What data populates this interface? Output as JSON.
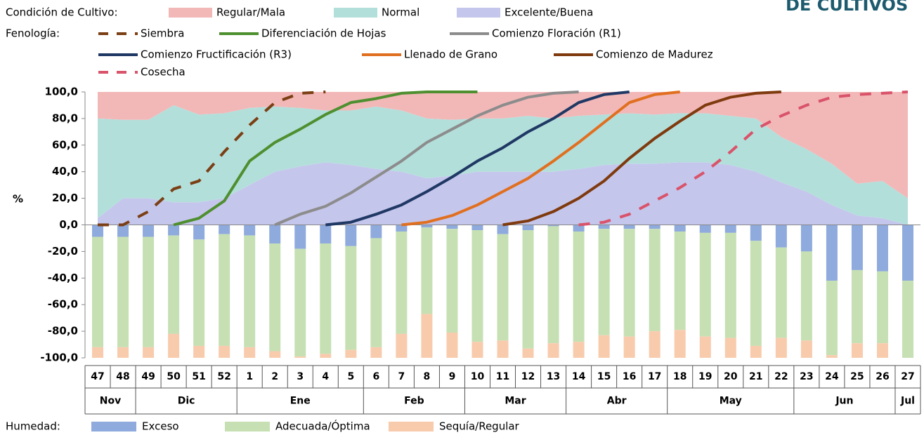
{
  "logo": "DE CULTIVOS",
  "chart_data": {
    "type": "combo",
    "condition_legend_title": "Condición de Cultivo:",
    "phenology_legend_title": "Fenología:",
    "moisture_legend_title": "Humedad:",
    "ylabel": "%",
    "categories": [
      "47",
      "48",
      "49",
      "50",
      "51",
      "52",
      "1",
      "2",
      "3",
      "4",
      "5",
      "6",
      "7",
      "8",
      "9",
      "10",
      "11",
      "12",
      "13",
      "14",
      "15",
      "16",
      "17",
      "18",
      "19",
      "20",
      "21",
      "22",
      "23",
      "24",
      "25",
      "26",
      "27"
    ],
    "months": [
      {
        "name": "Nov",
        "weeks": 2
      },
      {
        "name": "Dic",
        "weeks": 4
      },
      {
        "name": "Ene",
        "weeks": 5
      },
      {
        "name": "Feb",
        "weeks": 4
      },
      {
        "name": "Mar",
        "weeks": 4
      },
      {
        "name": "Abr",
        "weeks": 4
      },
      {
        "name": "May",
        "weeks": 5
      },
      {
        "name": "Jun",
        "weeks": 4
      },
      {
        "name": "Jul",
        "weeks": 1
      }
    ],
    "ylim": [
      -100,
      100
    ],
    "yticks": [
      {
        "value": 100,
        "label": "100,0"
      },
      {
        "value": 80,
        "label": "80,0"
      },
      {
        "value": 60,
        "label": "60,0"
      },
      {
        "value": 40,
        "label": "40,0"
      },
      {
        "value": 20,
        "label": "20,0"
      },
      {
        "value": 0,
        "label": "0,0"
      },
      {
        "value": -20,
        "label": "-20,0"
      },
      {
        "value": -40,
        "label": "-40,0"
      },
      {
        "value": -60,
        "label": "-60,0"
      },
      {
        "value": -80,
        "label": "-80,0"
      },
      {
        "value": -100,
        "label": "-100,0"
      }
    ],
    "area_series": [
      {
        "name": "Excelente/Buena",
        "color": "#c5c6ec",
        "values": [
          5,
          20,
          20,
          17,
          17,
          20,
          30,
          40,
          44,
          47,
          45,
          42,
          40,
          35,
          37,
          40,
          40,
          40,
          40,
          42,
          45,
          46,
          46,
          47,
          47,
          45,
          40,
          32,
          25,
          15,
          7,
          5,
          0
        ]
      },
      {
        "name": "Normal",
        "color": "#b3dfdb",
        "values": [
          75,
          59,
          59,
          73,
          66,
          64,
          58,
          49,
          44,
          39,
          41,
          47,
          46,
          45,
          42,
          40,
          40,
          42,
          40,
          40,
          38,
          38,
          37,
          37,
          37,
          37,
          40,
          34,
          32,
          31,
          24,
          28,
          20
        ]
      },
      {
        "name": "Regular/Mala",
        "color": "#f2b8b8",
        "values": [
          20,
          21,
          21,
          10,
          17,
          16,
          12,
          11,
          12,
          14,
          14,
          11,
          14,
          20,
          21,
          20,
          20,
          18,
          20,
          18,
          17,
          16,
          17,
          16,
          16,
          18,
          20,
          34,
          43,
          54,
          69,
          67,
          80
        ]
      }
    ],
    "line_series": [
      {
        "name": "Siembra",
        "color": "#7b3f14",
        "dash": true,
        "values": [
          0,
          0,
          10,
          27,
          33,
          55,
          75,
          92,
          99,
          100,
          null,
          null,
          null,
          null,
          null,
          null,
          null,
          null,
          null,
          null,
          null,
          null,
          null,
          null,
          null,
          null,
          null,
          null,
          null,
          null,
          null,
          null,
          null
        ]
      },
      {
        "name": "Diferenciación de Hojas",
        "color": "#4e8f2f",
        "dash": false,
        "values": [
          null,
          null,
          null,
          0,
          5,
          18,
          48,
          62,
          72,
          83,
          92,
          95,
          99,
          100,
          100,
          100,
          null,
          null,
          null,
          null,
          null,
          null,
          null,
          null,
          null,
          null,
          null,
          null,
          null,
          null,
          null,
          null,
          null
        ]
      },
      {
        "name": "Comienzo Floración (R1)",
        "color": "#8c8c8c",
        "dash": false,
        "values": [
          null,
          null,
          null,
          null,
          null,
          null,
          null,
          0,
          8,
          14,
          24,
          36,
          48,
          62,
          72,
          82,
          90,
          96,
          99,
          100,
          null,
          null,
          null,
          null,
          null,
          null,
          null,
          null,
          null,
          null,
          null,
          null,
          null
        ]
      },
      {
        "name": "Comienzo Fructificación (R3)",
        "color": "#1f3864",
        "dash": false,
        "values": [
          null,
          null,
          null,
          null,
          null,
          null,
          null,
          null,
          null,
          0,
          2,
          8,
          15,
          25,
          36,
          48,
          58,
          70,
          80,
          92,
          98,
          100,
          null,
          null,
          null,
          null,
          null,
          null,
          null,
          null,
          null,
          null,
          null
        ]
      },
      {
        "name": "Llenado de Grano",
        "color": "#e07020",
        "dash": false,
        "values": [
          null,
          null,
          null,
          null,
          null,
          null,
          null,
          null,
          null,
          null,
          null,
          null,
          0,
          2,
          7,
          15,
          25,
          35,
          48,
          62,
          77,
          92,
          98,
          100,
          null,
          null,
          null,
          null,
          null,
          null,
          null,
          null,
          null
        ]
      },
      {
        "name": "Comienzo de Madurez",
        "color": "#7f3a0e",
        "dash": false,
        "values": [
          null,
          null,
          null,
          null,
          null,
          null,
          null,
          null,
          null,
          null,
          null,
          null,
          null,
          null,
          null,
          null,
          0,
          3,
          10,
          20,
          33,
          50,
          65,
          78,
          90,
          96,
          99,
          100,
          null,
          null,
          null,
          null,
          null
        ]
      },
      {
        "name": "Cosecha",
        "color": "#d9536a",
        "dash": true,
        "values": [
          null,
          null,
          null,
          null,
          null,
          null,
          null,
          null,
          null,
          null,
          null,
          null,
          null,
          null,
          null,
          null,
          null,
          null,
          null,
          0,
          2,
          8,
          18,
          28,
          40,
          55,
          72,
          82,
          90,
          96,
          98,
          99,
          100
        ]
      }
    ],
    "bar_series": [
      {
        "name": "Exceso",
        "color": "#8faadc",
        "values": [
          -9,
          -9,
          -9,
          -8,
          -11,
          -7,
          -8,
          -14,
          -18,
          -14,
          -16,
          -10,
          -5,
          -2,
          -3,
          -4,
          -7,
          -4,
          -1,
          -5,
          -3,
          -3,
          -3,
          -5,
          -6,
          -6,
          -12,
          -17,
          -20,
          -42,
          -34,
          -35,
          -42
        ]
      },
      {
        "name": "Adecuada/Óptima",
        "color": "#c6e0b4",
        "values": [
          -83,
          -83,
          -83,
          -74,
          -80,
          -84,
          -84,
          -81,
          -81,
          -83,
          -78,
          -82,
          -77,
          -65,
          -78,
          -84,
          -80,
          -89,
          -88,
          -83,
          -80,
          -81,
          -77,
          -74,
          -78,
          -79,
          -79,
          -68,
          -67,
          -56,
          -55,
          -54,
          -58
        ]
      },
      {
        "name": "Sequía/Regular",
        "color": "#f8cbad",
        "values": [
          -8,
          -8,
          -8,
          -18,
          -9,
          -9,
          -8,
          -5,
          -1,
          -3,
          -6,
          -8,
          -18,
          -33,
          -19,
          -12,
          -13,
          -7,
          -11,
          -12,
          -17,
          -16,
          -20,
          -21,
          -16,
          -15,
          -9,
          -15,
          -13,
          -2,
          -11,
          -11,
          0
        ]
      }
    ]
  }
}
